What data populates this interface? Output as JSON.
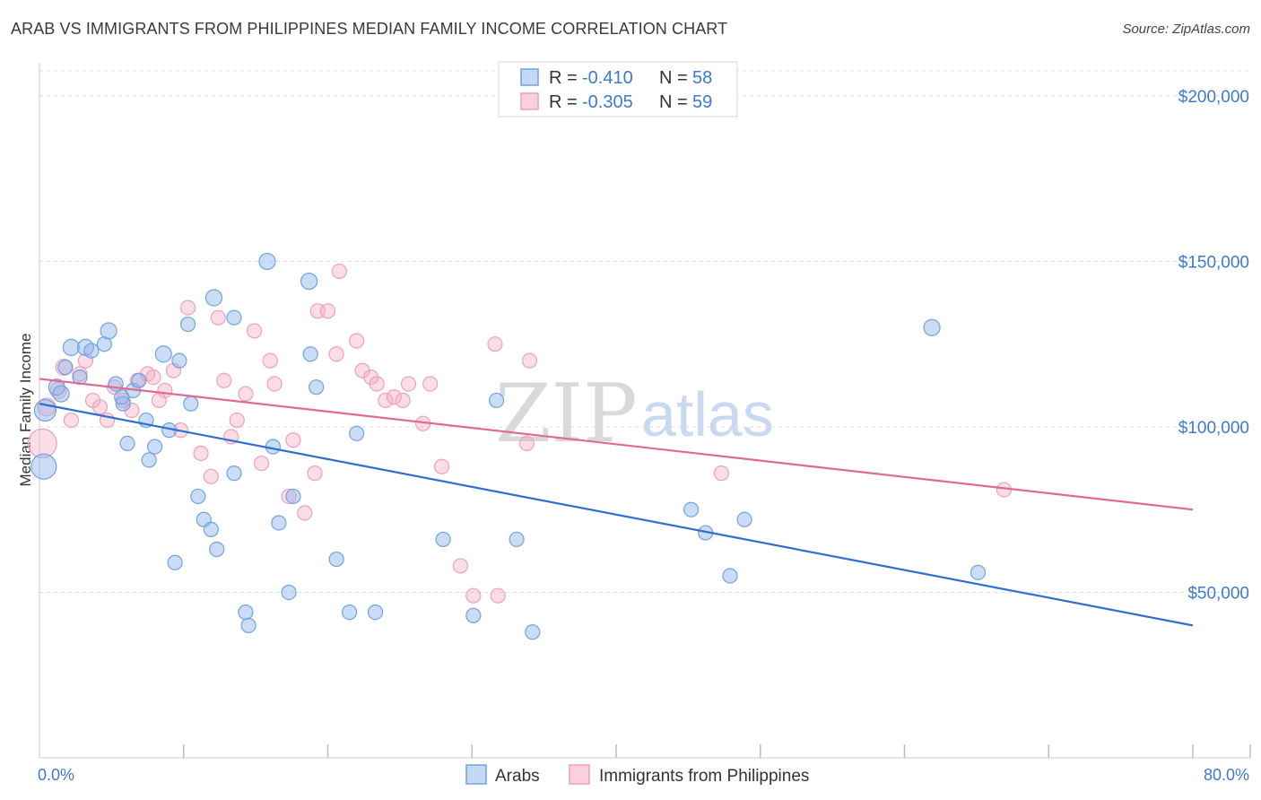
{
  "title": "ARAB VS IMMIGRANTS FROM PHILIPPINES MEDIAN FAMILY INCOME CORRELATION CHART",
  "source": "Source: ZipAtlas.com",
  "watermark": {
    "zip": "ZIP",
    "atlas": "atlas"
  },
  "colors": {
    "arabs": "#6fa3e0",
    "arabs_line": "#2e6fd0",
    "philippines": "#f0a0b8",
    "philippines_line": "#e06a93",
    "tick": "#3d7ad1"
  },
  "legend": {
    "rows": [
      {
        "r_label": "R = ",
        "r_value": "-0.410",
        "n_label": "N = ",
        "n_value": "58"
      },
      {
        "r_label": "R = ",
        "r_value": "-0.305",
        "n_label": "N = ",
        "n_value": "59"
      }
    ]
  },
  "bottom_legend": {
    "arabs": "Arabs",
    "philippines": "Immigrants from Philippines"
  },
  "chart_data": {
    "type": "scatter",
    "xlabel": "",
    "ylabel": "Median Family Income",
    "xlim": [
      0,
      80
    ],
    "ylim": [
      0,
      210000
    ],
    "x_tick_labels": {
      "min": "0.0%",
      "max": "80.0%"
    },
    "y_ticks": [
      {
        "value": 50000,
        "label": "$50,000"
      },
      {
        "value": 100000,
        "label": "$100,000"
      },
      {
        "value": 150000,
        "label": "$150,000"
      },
      {
        "value": 200000,
        "label": "$200,000"
      }
    ],
    "series": [
      {
        "name": "Arabs",
        "r": -0.41,
        "n": 58,
        "trend": {
          "x0": 0,
          "y0": 107000,
          "x1": 80,
          "y1": 40000
        },
        "points": [
          [
            0.3,
            88000,
            14
          ],
          [
            0.4,
            105000,
            12
          ],
          [
            1.2,
            112000,
            9
          ],
          [
            1.5,
            110000,
            9
          ],
          [
            1.8,
            118000,
            8
          ],
          [
            2.2,
            124000,
            9
          ],
          [
            2.8,
            115000,
            8
          ],
          [
            3.2,
            124000,
            9
          ],
          [
            3.6,
            123000,
            8
          ],
          [
            4.5,
            125000,
            8
          ],
          [
            4.8,
            129000,
            9
          ],
          [
            5.3,
            113000,
            8
          ],
          [
            5.8,
            107000,
            8
          ],
          [
            5.7,
            109000,
            8
          ],
          [
            6.1,
            95000,
            8
          ],
          [
            6.5,
            111000,
            8
          ],
          [
            6.9,
            114000,
            8
          ],
          [
            7.4,
            102000,
            8
          ],
          [
            7.6,
            90000,
            8
          ],
          [
            8.0,
            94000,
            8
          ],
          [
            8.6,
            122000,
            9
          ],
          [
            9.0,
            99000,
            8
          ],
          [
            9.4,
            59000,
            8
          ],
          [
            9.7,
            120000,
            8
          ],
          [
            10.3,
            131000,
            8
          ],
          [
            10.5,
            107000,
            8
          ],
          [
            11.0,
            79000,
            8
          ],
          [
            11.4,
            72000,
            8
          ],
          [
            11.9,
            69000,
            8
          ],
          [
            12.3,
            63000,
            8
          ],
          [
            12.1,
            139000,
            9
          ],
          [
            13.5,
            133000,
            8
          ],
          [
            13.5,
            86000,
            8
          ],
          [
            14.3,
            44000,
            8
          ],
          [
            14.5,
            40000,
            8
          ],
          [
            15.8,
            150000,
            9
          ],
          [
            16.2,
            94000,
            8
          ],
          [
            16.6,
            71000,
            8
          ],
          [
            17.3,
            50000,
            8
          ],
          [
            17.6,
            79000,
            8
          ],
          [
            18.7,
            144000,
            9
          ],
          [
            18.8,
            122000,
            8
          ],
          [
            19.2,
            112000,
            8
          ],
          [
            20.6,
            60000,
            8
          ],
          [
            21.5,
            44000,
            8
          ],
          [
            22.0,
            98000,
            8
          ],
          [
            23.3,
            44000,
            8
          ],
          [
            28.0,
            66000,
            8
          ],
          [
            30.1,
            43000,
            8
          ],
          [
            31.7,
            108000,
            8
          ],
          [
            33.1,
            66000,
            8
          ],
          [
            34.2,
            38000,
            8
          ],
          [
            45.2,
            75000,
            8
          ],
          [
            46.2,
            68000,
            8
          ],
          [
            47.9,
            55000,
            8
          ],
          [
            48.9,
            72000,
            8
          ],
          [
            61.9,
            130000,
            9
          ],
          [
            65.1,
            56000,
            8
          ]
        ]
      },
      {
        "name": "Immigrants from Philippines",
        "r": -0.305,
        "n": 59,
        "trend": {
          "x0": 0,
          "y0": 114500,
          "x1": 80,
          "y1": 75000
        },
        "points": [
          [
            0.2,
            95000,
            16
          ],
          [
            0.5,
            106000,
            10
          ],
          [
            1.3,
            111000,
            9
          ],
          [
            1.7,
            118000,
            9
          ],
          [
            2.2,
            102000,
            8
          ],
          [
            2.8,
            116000,
            8
          ],
          [
            3.2,
            120000,
            8
          ],
          [
            3.7,
            108000,
            8
          ],
          [
            4.2,
            106000,
            8
          ],
          [
            4.7,
            102000,
            8
          ],
          [
            5.2,
            112000,
            8
          ],
          [
            5.8,
            108000,
            8
          ],
          [
            6.4,
            105000,
            8
          ],
          [
            6.8,
            114000,
            8
          ],
          [
            7.5,
            116000,
            8
          ],
          [
            7.9,
            115000,
            8
          ],
          [
            8.3,
            108000,
            8
          ],
          [
            8.7,
            111000,
            8
          ],
          [
            9.3,
            117000,
            8
          ],
          [
            9.8,
            99000,
            8
          ],
          [
            10.3,
            136000,
            8
          ],
          [
            11.2,
            92000,
            8
          ],
          [
            11.9,
            85000,
            8
          ],
          [
            12.4,
            133000,
            8
          ],
          [
            12.8,
            114000,
            8
          ],
          [
            13.3,
            97000,
            8
          ],
          [
            13.7,
            102000,
            8
          ],
          [
            14.3,
            110000,
            8
          ],
          [
            14.9,
            129000,
            8
          ],
          [
            15.4,
            89000,
            8
          ],
          [
            16.0,
            120000,
            8
          ],
          [
            16.3,
            113000,
            8
          ],
          [
            17.3,
            79000,
            8
          ],
          [
            17.6,
            96000,
            8
          ],
          [
            18.4,
            74000,
            8
          ],
          [
            19.1,
            86000,
            8
          ],
          [
            19.3,
            135000,
            8
          ],
          [
            20.0,
            135000,
            8
          ],
          [
            20.6,
            122000,
            8
          ],
          [
            20.8,
            147000,
            8
          ],
          [
            22.0,
            126000,
            8
          ],
          [
            22.4,
            117000,
            8
          ],
          [
            23.0,
            115000,
            8
          ],
          [
            23.4,
            113000,
            8
          ],
          [
            24.0,
            108000,
            8
          ],
          [
            24.6,
            109000,
            8
          ],
          [
            25.2,
            108000,
            8
          ],
          [
            25.6,
            113000,
            8
          ],
          [
            26.6,
            101000,
            8
          ],
          [
            27.1,
            113000,
            8
          ],
          [
            27.9,
            88000,
            8
          ],
          [
            29.2,
            58000,
            8
          ],
          [
            30.1,
            49000,
            8
          ],
          [
            31.6,
            125000,
            8
          ],
          [
            31.8,
            49000,
            8
          ],
          [
            33.8,
            95000,
            8
          ],
          [
            34.0,
            120000,
            8
          ],
          [
            47.3,
            86000,
            8
          ],
          [
            66.9,
            81000,
            8
          ]
        ]
      }
    ]
  }
}
